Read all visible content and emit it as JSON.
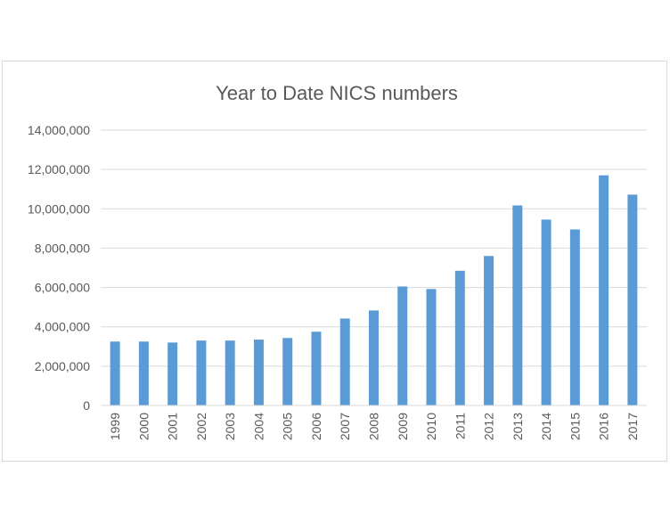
{
  "chart_data": {
    "type": "bar",
    "title": "Year to Date NICS numbers",
    "xlabel": "",
    "ylabel": "",
    "categories": [
      "1999",
      "2000",
      "2001",
      "2002",
      "2003",
      "2004",
      "2005",
      "2006",
      "2007",
      "2008",
      "2009",
      "2010",
      "2011",
      "2012",
      "2013",
      "2014",
      "2015",
      "2016",
      "2017"
    ],
    "values": [
      3250000,
      3250000,
      3200000,
      3300000,
      3300000,
      3350000,
      3430000,
      3750000,
      4420000,
      4830000,
      6050000,
      5920000,
      6850000,
      7600000,
      10170000,
      9450000,
      8950000,
      11700000,
      10720000
    ],
    "ylim": [
      0,
      14000000
    ],
    "yticks": [
      0,
      2000000,
      4000000,
      6000000,
      8000000,
      10000000,
      12000000,
      14000000
    ],
    "ytick_labels": [
      "0",
      "2,000,000",
      "4,000,000",
      "6,000,000",
      "8,000,000",
      "10,000,000",
      "12,000,000",
      "14,000,000"
    ],
    "grid": true,
    "legend": "none",
    "bar_color": "#5b9bd5",
    "grid_color": "#d9d9d9",
    "text_color": "#595959"
  }
}
